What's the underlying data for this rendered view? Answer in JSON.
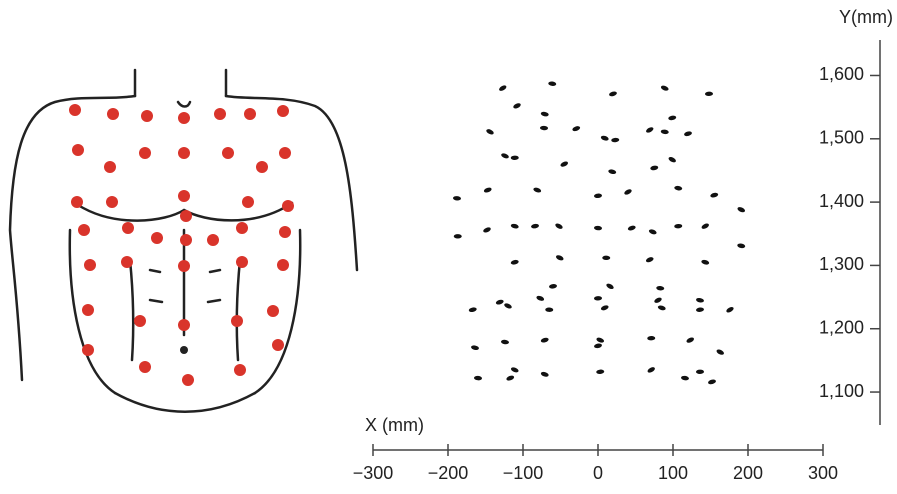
{
  "chart_data": {
    "type": "scatter",
    "x_label": "X (mm)",
    "y_label": "Y(mm)",
    "color": "#111111",
    "xlim": [
      -300,
      300
    ],
    "xticks": [
      {
        "value": -300,
        "label": "−300"
      },
      {
        "value": -200,
        "label": "−200"
      },
      {
        "value": -100,
        "label": "−100"
      },
      0,
      100,
      200,
      300
    ],
    "ylim": [
      1050,
      1690
    ],
    "yticks": [
      {
        "value": 1100,
        "label": "1,100"
      },
      {
        "value": 1200,
        "label": "1,200"
      },
      {
        "value": 1300,
        "label": "1,300"
      },
      {
        "value": 1400,
        "label": "1,400"
      },
      {
        "value": 1500,
        "label": "1,500"
      },
      {
        "value": 1600,
        "label": "1,600"
      }
    ],
    "x": [
      -127,
      -61,
      20,
      89,
      148,
      -108,
      -71,
      99,
      -144,
      -72,
      -29,
      9,
      23,
      69,
      89,
      120,
      -124,
      -111,
      -45,
      19,
      75,
      99,
      -188,
      -147,
      -81,
      0,
      40,
      107,
      155,
      191,
      -187,
      -148,
      -111,
      -84,
      -52,
      0,
      45,
      73,
      107,
      143,
      191,
      -111,
      -51,
      11,
      69,
      143,
      -60,
      16,
      83,
      -131,
      -77,
      0,
      80,
      136,
      -167,
      -120,
      -65,
      9,
      85,
      136,
      176,
      -124,
      -71,
      3,
      71,
      123,
      -164,
      0,
      163,
      -160,
      -117,
      -71,
      3,
      71,
      116,
      152,
      -111,
      136
    ],
    "values": [
      1580,
      1587,
      1571,
      1580,
      1571,
      1552,
      1539,
      1533,
      1511,
      1517,
      1516,
      1501,
      1498,
      1514,
      1511,
      1508,
      1473,
      1470,
      1460,
      1448,
      1454,
      1467,
      1406,
      1419,
      1419,
      1410,
      1416,
      1422,
      1411,
      1388,
      1346,
      1356,
      1362,
      1362,
      1362,
      1359,
      1359,
      1353,
      1362,
      1362,
      1331,
      1305,
      1312,
      1312,
      1309,
      1305,
      1267,
      1267,
      1264,
      1242,
      1248,
      1248,
      1245,
      1245,
      1230,
      1236,
      1230,
      1233,
      1233,
      1230,
      1230,
      1179,
      1182,
      1182,
      1185,
      1182,
      1170,
      1173,
      1163,
      1122,
      1122,
      1128,
      1132,
      1135,
      1122,
      1116,
      1135,
      1132
    ]
  }
}
